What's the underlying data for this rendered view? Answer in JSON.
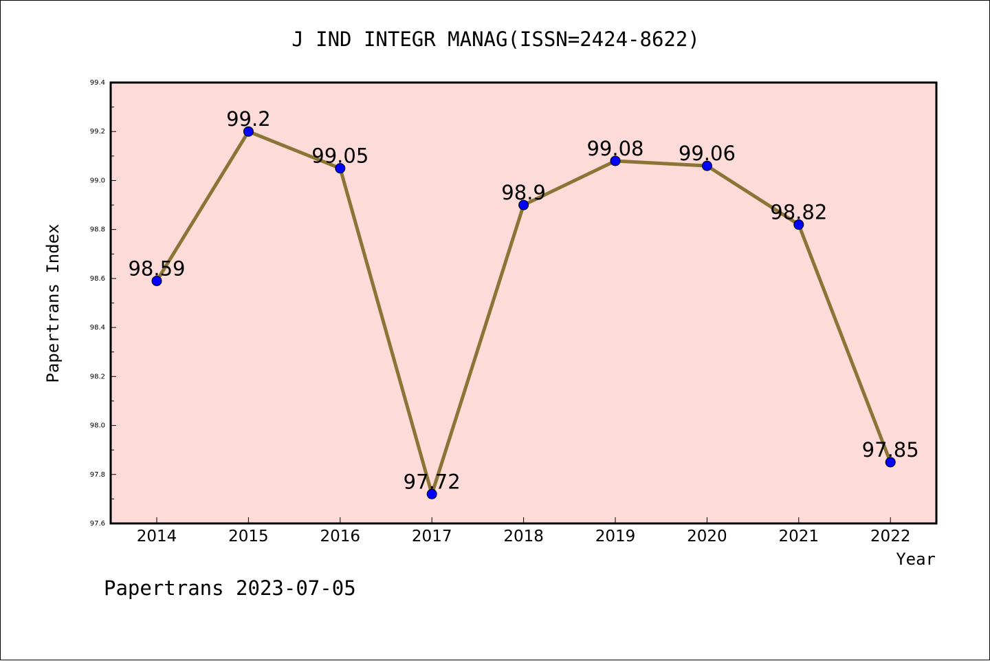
{
  "chart_data": {
    "type": "line",
    "title": "J IND INTEGR MANAG(ISSN=2424-8622)",
    "xlabel": "Year",
    "ylabel": "Papertrans Index",
    "categories": [
      "2014",
      "2015",
      "2016",
      "2017",
      "2018",
      "2019",
      "2020",
      "2021",
      "2022"
    ],
    "series": [
      {
        "values": [
          98.59,
          99.2,
          99.05,
          97.72,
          98.9,
          99.08,
          99.06,
          98.82,
          97.85
        ],
        "labels": [
          "98.59",
          "99.2",
          "99.05",
          "97.72",
          "98.9",
          "99.08",
          "99.06",
          "98.82",
          "97.85"
        ]
      }
    ],
    "ylim": [
      97.6,
      99.4
    ],
    "yticks": [
      "97.6",
      "97.8",
      "98.0",
      "98.2",
      "98.4",
      "98.6",
      "98.8",
      "99.0",
      "99.2",
      "99.4"
    ],
    "grid": false,
    "colors": {
      "plot_bg": "#fddbd8",
      "line": "#8b7536",
      "marker": "#0000ff"
    }
  },
  "footer": "Papertrans 2023-07-05"
}
